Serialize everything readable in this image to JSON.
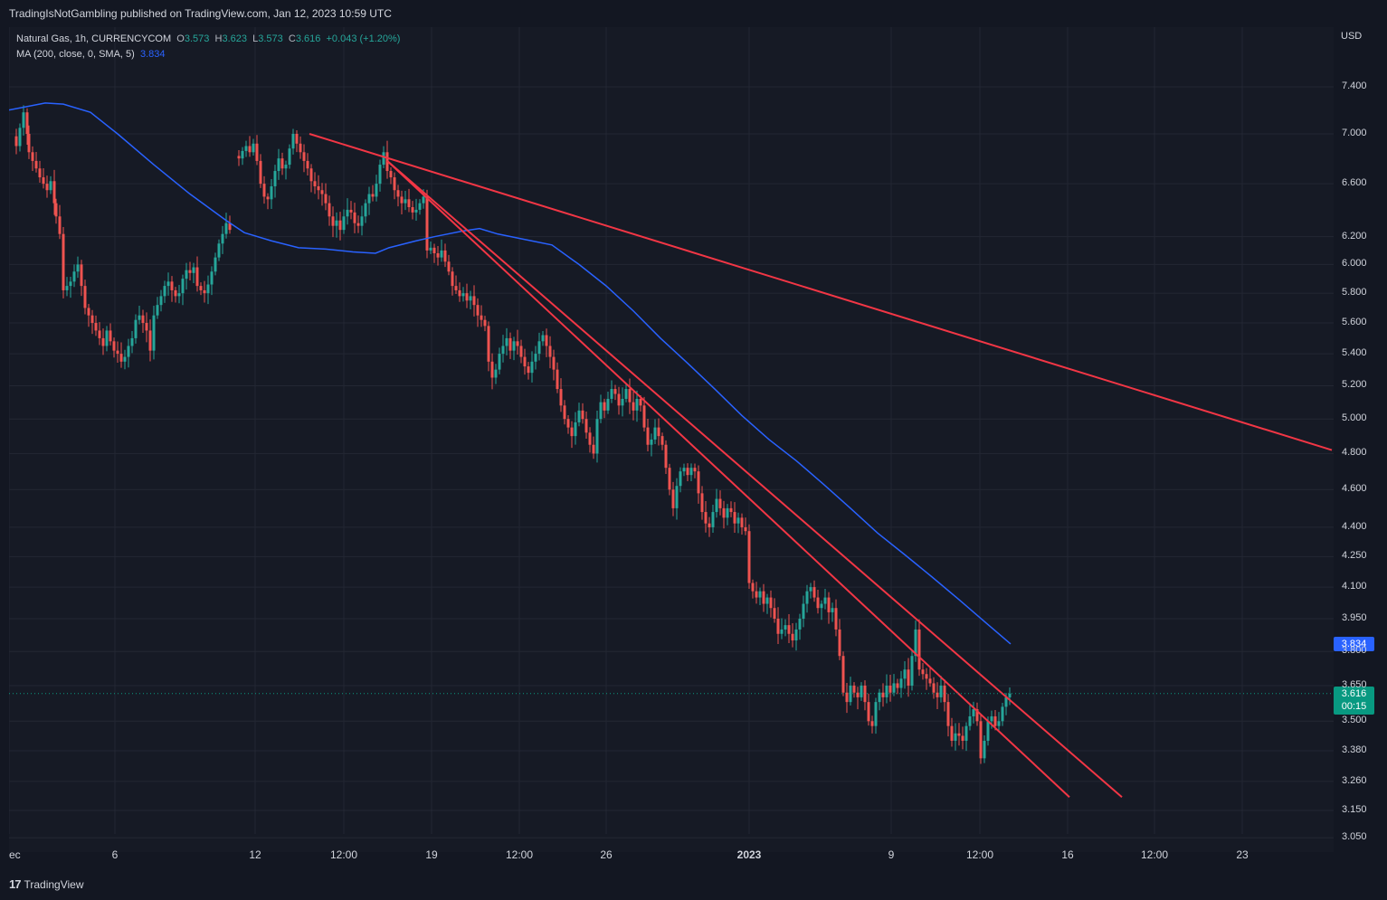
{
  "publisher_line": "TradingIsNotGambling published on TradingView.com, Jan 12, 2023 10:59 UTC",
  "legend": {
    "symbol": "Natural Gas, 1h, CURRENCYCOM",
    "o_label": "O",
    "o_value": "3.573",
    "h_label": "H",
    "h_value": "3.623",
    "l_label": "L",
    "l_value": "3.573",
    "c_label": "C",
    "c_value": "3.616",
    "change": "+0.043 (+1.20%)",
    "ma_label": "MA (200, close, 0, SMA, 5)",
    "ma_value": "3.834"
  },
  "currency": "USD",
  "branding": {
    "logo_mark": "17",
    "logo_text": "TradingView"
  },
  "colors": {
    "background": "#161a25",
    "up_candle": "#26a69a",
    "down_candle": "#ef5350",
    "ma_line": "#2962ff",
    "trendline": "#f23645",
    "price_tag": "#089981",
    "ma_tag": "#2962ff"
  },
  "chart_data": {
    "type": "candlestick",
    "title": "Natural Gas, 1h, CURRENCYCOM",
    "y_scale": "log",
    "y_ticks": [
      "7.400",
      "7.000",
      "6.600",
      "6.200",
      "6.000",
      "5.800",
      "5.600",
      "5.400",
      "5.200",
      "5.000",
      "4.800",
      "4.600",
      "4.400",
      "4.250",
      "4.100",
      "3.950",
      "3.800",
      "3.650",
      "3.500",
      "3.380",
      "3.260",
      "3.150",
      "3.050"
    ],
    "x_ticks": [
      "ec",
      "6",
      "12",
      "12:00",
      "19",
      "12:00",
      "26",
      "2023",
      "9",
      "12:00",
      "16",
      "12:00",
      "23"
    ],
    "last_price": "3.616",
    "countdown": "00:15",
    "ma_last": "3.834",
    "price_path": [
      [
        0,
        7.05
      ],
      [
        6,
        6.98
      ],
      [
        10,
        6.9
      ],
      [
        14,
        7.05
      ],
      [
        18,
        7.18
      ],
      [
        20,
        7.0
      ],
      [
        24,
        6.85
      ],
      [
        28,
        6.78
      ],
      [
        32,
        6.72
      ],
      [
        36,
        6.65
      ],
      [
        40,
        6.6
      ],
      [
        44,
        6.55
      ],
      [
        48,
        6.62
      ],
      [
        50,
        6.45
      ],
      [
        54,
        6.35
      ],
      [
        58,
        6.22
      ],
      [
        62,
        5.82
      ],
      [
        66,
        5.85
      ],
      [
        70,
        5.88
      ],
      [
        74,
        5.95
      ],
      [
        78,
        6.0
      ],
      [
        82,
        5.85
      ],
      [
        86,
        5.7
      ],
      [
        90,
        5.65
      ],
      [
        94,
        5.6
      ],
      [
        98,
        5.55
      ],
      [
        102,
        5.5
      ],
      [
        106,
        5.45
      ],
      [
        110,
        5.55
      ],
      [
        114,
        5.48
      ],
      [
        118,
        5.42
      ],
      [
        122,
        5.4
      ],
      [
        126,
        5.35
      ],
      [
        130,
        5.38
      ],
      [
        134,
        5.45
      ],
      [
        138,
        5.5
      ],
      [
        142,
        5.62
      ],
      [
        146,
        5.65
      ],
      [
        150,
        5.6
      ],
      [
        154,
        5.55
      ],
      [
        158,
        5.42
      ],
      [
        162,
        5.65
      ],
      [
        166,
        5.72
      ],
      [
        170,
        5.78
      ],
      [
        174,
        5.85
      ],
      [
        178,
        5.88
      ],
      [
        182,
        5.82
      ],
      [
        186,
        5.78
      ],
      [
        190,
        5.8
      ],
      [
        194,
        5.9
      ],
      [
        198,
        5.96
      ],
      [
        202,
        5.94
      ],
      [
        206,
        5.98
      ],
      [
        210,
        5.85
      ],
      [
        214,
        5.82
      ],
      [
        218,
        5.8
      ],
      [
        222,
        5.86
      ],
      [
        226,
        5.95
      ],
      [
        230,
        6.05
      ],
      [
        234,
        6.15
      ],
      [
        238,
        6.22
      ],
      [
        242,
        6.3
      ],
      [
        246,
        6.25
      ],
      [
        252,
        6.82
      ],
      [
        256,
        6.8
      ],
      [
        260,
        6.86
      ],
      [
        264,
        6.9
      ],
      [
        268,
        6.85
      ],
      [
        272,
        6.92
      ],
      [
        276,
        6.78
      ],
      [
        280,
        6.6
      ],
      [
        284,
        6.5
      ],
      [
        288,
        6.48
      ],
      [
        292,
        6.58
      ],
      [
        296,
        6.7
      ],
      [
        300,
        6.8
      ],
      [
        304,
        6.72
      ],
      [
        308,
        6.75
      ],
      [
        312,
        6.88
      ],
      [
        316,
        7.0
      ],
      [
        320,
        6.92
      ],
      [
        324,
        6.85
      ],
      [
        328,
        6.78
      ],
      [
        332,
        6.72
      ],
      [
        336,
        6.62
      ],
      [
        340,
        6.58
      ],
      [
        344,
        6.55
      ],
      [
        348,
        6.52
      ],
      [
        352,
        6.45
      ],
      [
        356,
        6.35
      ],
      [
        360,
        6.28
      ],
      [
        364,
        6.32
      ],
      [
        368,
        6.25
      ],
      [
        372,
        6.35
      ],
      [
        376,
        6.4
      ],
      [
        380,
        6.38
      ],
      [
        384,
        6.3
      ],
      [
        388,
        6.28
      ],
      [
        392,
        6.35
      ],
      [
        396,
        6.45
      ],
      [
        400,
        6.52
      ],
      [
        404,
        6.5
      ],
      [
        408,
        6.6
      ],
      [
        412,
        6.75
      ],
      [
        416,
        6.85
      ],
      [
        420,
        6.7
      ],
      [
        424,
        6.65
      ],
      [
        428,
        6.55
      ],
      [
        432,
        6.5
      ],
      [
        436,
        6.45
      ],
      [
        440,
        6.48
      ],
      [
        444,
        6.42
      ],
      [
        448,
        6.38
      ],
      [
        452,
        6.4
      ],
      [
        456,
        6.45
      ],
      [
        460,
        6.5
      ],
      [
        464,
        6.1
      ],
      [
        468,
        6.12
      ],
      [
        472,
        6.08
      ],
      [
        476,
        6.05
      ],
      [
        480,
        6.1
      ],
      [
        484,
        6.02
      ],
      [
        488,
        5.95
      ],
      [
        492,
        5.85
      ],
      [
        496,
        5.82
      ],
      [
        500,
        5.78
      ],
      [
        504,
        5.8
      ],
      [
        508,
        5.75
      ],
      [
        512,
        5.78
      ],
      [
        516,
        5.72
      ],
      [
        520,
        5.65
      ],
      [
        524,
        5.62
      ],
      [
        528,
        5.58
      ],
      [
        532,
        5.35
      ],
      [
        536,
        5.25
      ],
      [
        540,
        5.3
      ],
      [
        544,
        5.4
      ],
      [
        548,
        5.45
      ],
      [
        552,
        5.5
      ],
      [
        556,
        5.42
      ],
      [
        560,
        5.48
      ],
      [
        564,
        5.45
      ],
      [
        568,
        5.38
      ],
      [
        572,
        5.32
      ],
      [
        576,
        5.28
      ],
      [
        580,
        5.35
      ],
      [
        584,
        5.4
      ],
      [
        588,
        5.48
      ],
      [
        592,
        5.52
      ],
      [
        596,
        5.45
      ],
      [
        600,
        5.38
      ],
      [
        604,
        5.3
      ],
      [
        608,
        5.18
      ],
      [
        612,
        5.08
      ],
      [
        616,
        5.0
      ],
      [
        620,
        4.95
      ],
      [
        624,
        4.9
      ],
      [
        628,
        4.98
      ],
      [
        632,
        5.05
      ],
      [
        636,
        5.0
      ],
      [
        640,
        4.92
      ],
      [
        644,
        4.85
      ],
      [
        648,
        4.8
      ],
      [
        652,
        5.0
      ],
      [
        656,
        5.1
      ],
      [
        660,
        5.05
      ],
      [
        664,
        5.12
      ],
      [
        668,
        5.18
      ],
      [
        672,
        5.15
      ],
      [
        676,
        5.08
      ],
      [
        680,
        5.12
      ],
      [
        684,
        5.18
      ],
      [
        688,
        5.1
      ],
      [
        692,
        5.05
      ],
      [
        696,
        5.12
      ],
      [
        700,
        5.08
      ],
      [
        704,
        4.95
      ],
      [
        708,
        4.85
      ],
      [
        712,
        4.88
      ],
      [
        716,
        4.95
      ],
      [
        720,
        4.9
      ],
      [
        724,
        4.85
      ],
      [
        728,
        4.72
      ],
      [
        732,
        4.6
      ],
      [
        736,
        4.5
      ],
      [
        740,
        4.62
      ],
      [
        744,
        4.7
      ],
      [
        748,
        4.72
      ],
      [
        752,
        4.68
      ],
      [
        756,
        4.72
      ],
      [
        760,
        4.7
      ],
      [
        764,
        4.58
      ],
      [
        768,
        4.48
      ],
      [
        772,
        4.42
      ],
      [
        776,
        4.4
      ],
      [
        780,
        4.48
      ],
      [
        784,
        4.55
      ],
      [
        788,
        4.5
      ],
      [
        792,
        4.45
      ],
      [
        796,
        4.5
      ],
      [
        800,
        4.48
      ],
      [
        804,
        4.42
      ],
      [
        808,
        4.45
      ],
      [
        812,
        4.4
      ],
      [
        816,
        4.38
      ],
      [
        820,
        4.12
      ],
      [
        824,
        4.08
      ],
      [
        828,
        4.05
      ],
      [
        832,
        4.08
      ],
      [
        836,
        4.02
      ],
      [
        840,
        4.05
      ],
      [
        844,
        4.0
      ],
      [
        848,
        3.95
      ],
      [
        852,
        3.88
      ],
      [
        856,
        3.9
      ],
      [
        860,
        3.92
      ],
      [
        864,
        3.88
      ],
      [
        868,
        3.85
      ],
      [
        872,
        3.9
      ],
      [
        876,
        3.95
      ],
      [
        880,
        4.02
      ],
      [
        884,
        4.08
      ],
      [
        888,
        4.1
      ],
      [
        892,
        4.05
      ],
      [
        896,
        4.0
      ],
      [
        900,
        4.02
      ],
      [
        904,
        4.05
      ],
      [
        908,
        3.98
      ],
      [
        912,
        4.0
      ],
      [
        916,
        3.9
      ],
      [
        920,
        3.78
      ],
      [
        924,
        3.62
      ],
      [
        928,
        3.58
      ],
      [
        932,
        3.65
      ],
      [
        936,
        3.62
      ],
      [
        940,
        3.6
      ],
      [
        944,
        3.65
      ],
      [
        948,
        3.58
      ],
      [
        952,
        3.5
      ],
      [
        956,
        3.48
      ],
      [
        960,
        3.58
      ],
      [
        964,
        3.62
      ],
      [
        968,
        3.6
      ],
      [
        972,
        3.65
      ],
      [
        976,
        3.62
      ],
      [
        980,
        3.66
      ],
      [
        984,
        3.64
      ],
      [
        988,
        3.68
      ],
      [
        992,
        3.72
      ],
      [
        996,
        3.65
      ],
      [
        1000,
        3.78
      ],
      [
        1004,
        3.9
      ],
      [
        1008,
        3.72
      ],
      [
        1012,
        3.7
      ],
      [
        1016,
        3.68
      ],
      [
        1020,
        3.66
      ],
      [
        1024,
        3.62
      ],
      [
        1028,
        3.6
      ],
      [
        1032,
        3.65
      ],
      [
        1036,
        3.58
      ],
      [
        1040,
        3.48
      ],
      [
        1044,
        3.42
      ],
      [
        1048,
        3.45
      ],
      [
        1052,
        3.44
      ],
      [
        1056,
        3.42
      ],
      [
        1060,
        3.48
      ],
      [
        1064,
        3.52
      ],
      [
        1068,
        3.55
      ],
      [
        1072,
        3.5
      ],
      [
        1076,
        3.35
      ],
      [
        1080,
        3.42
      ],
      [
        1084,
        3.5
      ],
      [
        1088,
        3.52
      ],
      [
        1092,
        3.48
      ],
      [
        1096,
        3.5
      ],
      [
        1100,
        3.56
      ],
      [
        1104,
        3.6
      ],
      [
        1107,
        3.616
      ]
    ],
    "ma_path": [
      [
        0,
        7.2
      ],
      [
        40,
        7.26
      ],
      [
        60,
        7.25
      ],
      [
        90,
        7.18
      ],
      [
        120,
        7.0
      ],
      [
        160,
        6.75
      ],
      [
        200,
        6.52
      ],
      [
        240,
        6.32
      ],
      [
        260,
        6.23
      ],
      [
        290,
        6.17
      ],
      [
        320,
        6.12
      ],
      [
        350,
        6.11
      ],
      [
        380,
        6.09
      ],
      [
        405,
        6.08
      ],
      [
        420,
        6.12
      ],
      [
        450,
        6.17
      ],
      [
        470,
        6.2
      ],
      [
        500,
        6.24
      ],
      [
        520,
        6.26
      ],
      [
        540,
        6.22
      ],
      [
        570,
        6.18
      ],
      [
        600,
        6.14
      ],
      [
        630,
        6.0
      ],
      [
        660,
        5.85
      ],
      [
        690,
        5.68
      ],
      [
        720,
        5.5
      ],
      [
        750,
        5.34
      ],
      [
        780,
        5.18
      ],
      [
        810,
        5.02
      ],
      [
        840,
        4.88
      ],
      [
        870,
        4.76
      ],
      [
        900,
        4.63
      ],
      [
        930,
        4.5
      ],
      [
        960,
        4.37
      ],
      [
        990,
        4.26
      ],
      [
        1020,
        4.15
      ],
      [
        1050,
        4.04
      ],
      [
        1080,
        3.93
      ],
      [
        1107,
        3.834
      ]
    ],
    "trendlines": [
      {
        "x1": 332,
        "y1": 7.0,
        "x2": 1462,
        "y2": 4.82
      },
      {
        "x1": 418,
        "y1": 6.78,
        "x2": 1172,
        "y2": 3.2
      },
      {
        "x1": 418,
        "y1": 6.78,
        "x2": 1230,
        "y2": 3.2
      }
    ]
  }
}
